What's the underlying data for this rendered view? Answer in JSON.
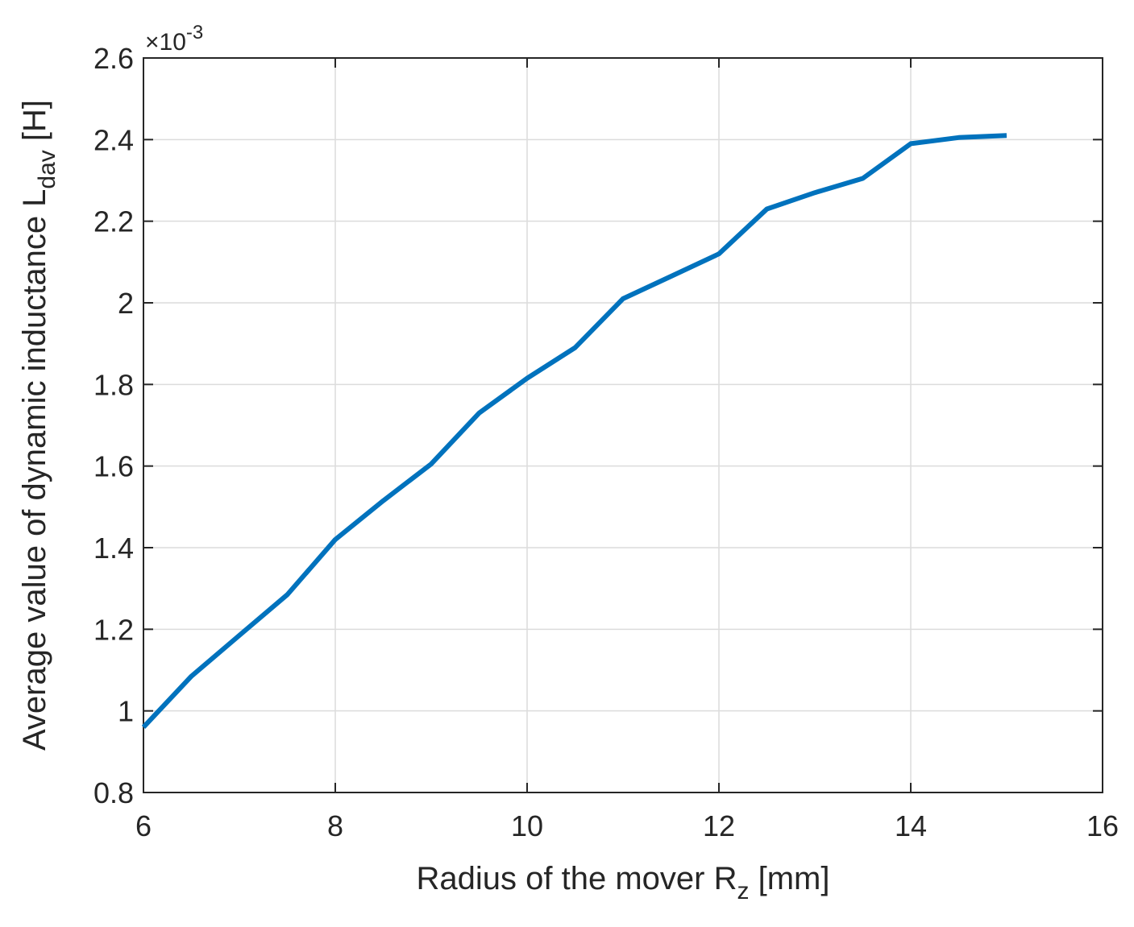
{
  "chart_data": {
    "type": "line",
    "title": "",
    "xlabel": {
      "prefix": "Radius of the mover R",
      "subscript": "z",
      "suffix": " [mm]"
    },
    "ylabel": {
      "prefix": "Average value of dynamic inductance L",
      "subscript": "dav",
      "suffix": " [H]"
    },
    "y_exponent": {
      "base": "×10",
      "power": "-3"
    },
    "xlim": [
      6,
      16
    ],
    "ylim": [
      0.8,
      2.6
    ],
    "xticks": [
      "6",
      "8",
      "10",
      "12",
      "14",
      "16"
    ],
    "yticks": [
      "0.8",
      "1",
      "1.2",
      "1.4",
      "1.6",
      "1.8",
      "2",
      "2.2",
      "2.4",
      "2.6"
    ],
    "grid": true,
    "line_color": "#0072BD",
    "series": [
      {
        "x": [
          6,
          6.5,
          7,
          7.5,
          8,
          8.5,
          9,
          9.5,
          10,
          10.5,
          11,
          11.5,
          12,
          12.5,
          13,
          13.5,
          14,
          14.5,
          15
        ],
        "y": [
          0.96,
          1.085,
          1.185,
          1.285,
          1.42,
          1.515,
          1.605,
          1.73,
          1.815,
          1.89,
          2.01,
          2.065,
          2.12,
          2.23,
          2.27,
          2.305,
          2.39,
          2.405,
          2.41
        ]
      }
    ]
  }
}
